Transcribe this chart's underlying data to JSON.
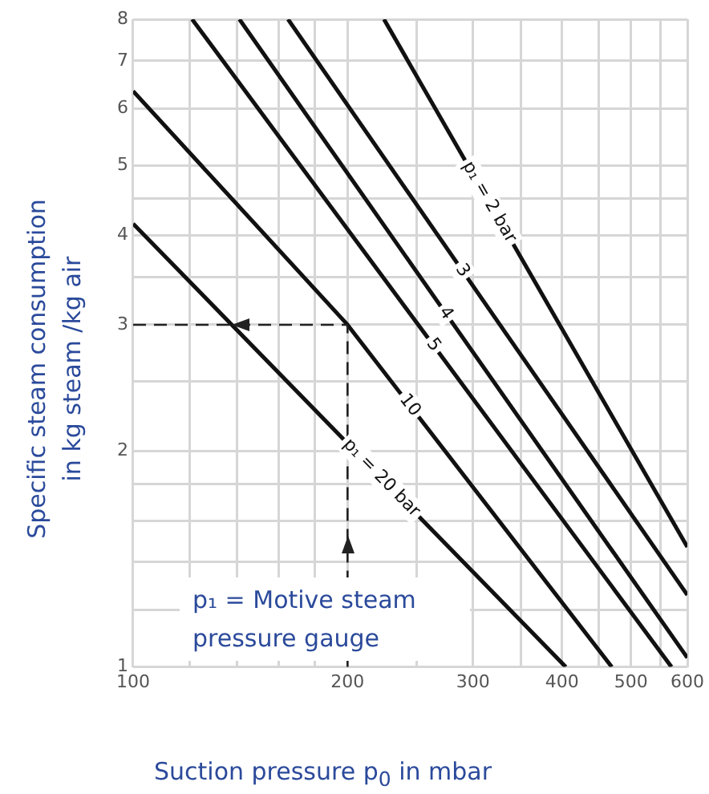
{
  "chart_data": {
    "type": "line",
    "xlabel": "Suction pressure p$_{0}$ in mbar",
    "ylabel": "Specific steam consumption in kg steam /kg air",
    "log": "xy",
    "grid": true,
    "legend": false,
    "marker": "none",
    "line_style": "solid",
    "xlim": [
      100,
      600
    ],
    "ylim": [
      1,
      8
    ],
    "xticks": [
      100,
      {
        "value": 120,
        "label": null
      },
      {
        "value": 140,
        "label": null
      },
      {
        "value": 160,
        "label": null
      },
      {
        "value": 180,
        "label": null
      },
      200,
      {
        "value": 250,
        "label": null
      },
      300,
      {
        "value": 350,
        "label": null
      },
      400,
      {
        "value": 450,
        "label": null
      },
      500,
      {
        "value": 550,
        "label": null
      },
      600
    ],
    "yticks": [
      1,
      {
        "value": 1.2,
        "label": null
      },
      {
        "value": 1.4,
        "label": null
      },
      {
        "value": 1.6,
        "label": null
      },
      {
        "value": 1.8,
        "label": null
      },
      2,
      {
        "value": 2.5,
        "label": null
      },
      3,
      {
        "value": 3.5,
        "label": null
      },
      4,
      {
        "value": 4.5,
        "label": null
      },
      5,
      6,
      7,
      8
    ],
    "series": [
      {
        "name": "p₁ = 2 bar",
        "color": "#111111",
        "x": [
          225,
          600
        ],
        "values": [
          8,
          1.47
        ]
      },
      {
        "name": "3",
        "color": "#111111",
        "x": [
          165,
          600
        ],
        "values": [
          8,
          1.26
        ]
      },
      {
        "name": "4",
        "color": "#111111",
        "x": [
          141,
          600
        ],
        "values": [
          8,
          1.03
        ]
      },
      {
        "name": "5",
        "color": "#111111",
        "x": [
          121,
          570
        ],
        "values": [
          8,
          1
        ]
      },
      {
        "name": "10",
        "color": "#111111",
        "x": [
          100,
          200,
          470
        ],
        "values": [
          6.35,
          3,
          1
        ]
      },
      {
        "name": "p₁ = 20 bar",
        "color": "#111111",
        "x": [
          100,
          405
        ],
        "values": [
          4.15,
          1
        ]
      }
    ],
    "ref_lines": [
      {
        "axis": "x",
        "value": 200,
        "line_style": "dashed",
        "color": "#222222"
      },
      {
        "axis": "y",
        "value": 3,
        "line_style": "dashed",
        "color": "#222222"
      }
    ],
    "annotations": [
      "p₁ = Motive steam pressure gauge"
    ]
  }
}
